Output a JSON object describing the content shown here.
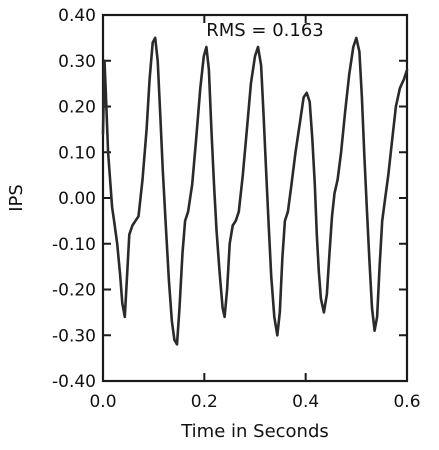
{
  "chart_data": {
    "type": "line",
    "title": "",
    "annotation": "RMS = 0.163",
    "xlabel": "Time in Seconds",
    "ylabel": "IPS",
    "xlim": [
      0.0,
      0.6
    ],
    "ylim": [
      -0.4,
      0.4
    ],
    "x_ticks": [
      "0.0",
      "0.2",
      "0.4",
      "0.6"
    ],
    "x_tick_values": [
      0.0,
      0.2,
      0.4,
      0.6
    ],
    "y_ticks": [
      "0.40",
      "0.30",
      "0.20",
      "0.10",
      "0.00",
      "-0.10",
      "-0.20",
      "-0.30",
      "-0.40"
    ],
    "y_tick_values": [
      0.4,
      0.3,
      0.2,
      0.1,
      0.0,
      -0.1,
      -0.2,
      -0.3,
      -0.4
    ],
    "grid": false,
    "series": [
      {
        "color": "#2a2a2a",
        "x": [
          0.0,
          0.003,
          0.006,
          0.01,
          0.014,
          0.018,
          0.022,
          0.028,
          0.034,
          0.038,
          0.043,
          0.047,
          0.052,
          0.058,
          0.064,
          0.07,
          0.078,
          0.086,
          0.092,
          0.098,
          0.103,
          0.108,
          0.113,
          0.118,
          0.124,
          0.13,
          0.136,
          0.141,
          0.146,
          0.151,
          0.157,
          0.162,
          0.168,
          0.176,
          0.184,
          0.192,
          0.199,
          0.204,
          0.209,
          0.214,
          0.219,
          0.224,
          0.23,
          0.236,
          0.24,
          0.245,
          0.25,
          0.256,
          0.262,
          0.268,
          0.276,
          0.284,
          0.292,
          0.3,
          0.306,
          0.312,
          0.317,
          0.322,
          0.327,
          0.332,
          0.338,
          0.344,
          0.349,
          0.354,
          0.359,
          0.365,
          0.372,
          0.38,
          0.388,
          0.396,
          0.402,
          0.408,
          0.413,
          0.418,
          0.422,
          0.426,
          0.43,
          0.436,
          0.442,
          0.447,
          0.452,
          0.457,
          0.463,
          0.47,
          0.478,
          0.486,
          0.494,
          0.5,
          0.506,
          0.511,
          0.516,
          0.521,
          0.526,
          0.531,
          0.536,
          0.541,
          0.546,
          0.551,
          0.557,
          0.563,
          0.57,
          0.578,
          0.586,
          0.594,
          0.6
        ],
        "y": [
          0.14,
          0.3,
          0.22,
          0.1,
          0.04,
          -0.02,
          -0.05,
          -0.1,
          -0.17,
          -0.23,
          -0.26,
          -0.18,
          -0.08,
          -0.06,
          -0.05,
          -0.04,
          0.04,
          0.15,
          0.26,
          0.34,
          0.35,
          0.3,
          0.18,
          0.06,
          -0.06,
          -0.18,
          -0.27,
          -0.31,
          -0.32,
          -0.24,
          -0.12,
          -0.05,
          -0.03,
          0.03,
          0.13,
          0.24,
          0.31,
          0.33,
          0.28,
          0.15,
          0.03,
          -0.07,
          -0.16,
          -0.24,
          -0.26,
          -0.2,
          -0.1,
          -0.06,
          -0.05,
          -0.03,
          0.05,
          0.15,
          0.25,
          0.31,
          0.33,
          0.29,
          0.18,
          0.06,
          -0.06,
          -0.17,
          -0.26,
          -0.3,
          -0.25,
          -0.13,
          -0.05,
          -0.03,
          0.03,
          0.1,
          0.16,
          0.22,
          0.23,
          0.21,
          0.13,
          0.03,
          -0.08,
          -0.16,
          -0.22,
          -0.25,
          -0.21,
          -0.12,
          -0.04,
          0.01,
          0.04,
          0.1,
          0.19,
          0.27,
          0.33,
          0.35,
          0.32,
          0.22,
          0.09,
          -0.03,
          -0.14,
          -0.24,
          -0.29,
          -0.26,
          -0.15,
          -0.05,
          0.0,
          0.05,
          0.12,
          0.2,
          0.24,
          0.26,
          0.28
        ]
      }
    ]
  }
}
